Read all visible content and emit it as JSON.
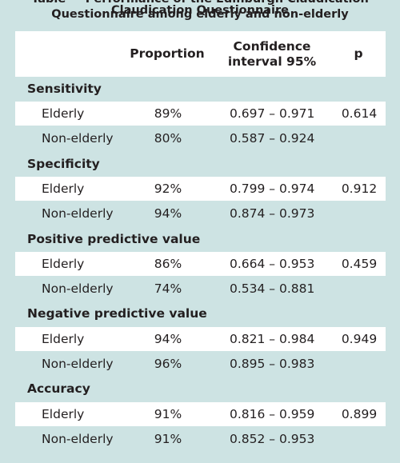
{
  "caption": {
    "line1": "Table — Performance of the Edinburgh Claudication Questionnaire among elderly and non-elderly",
    "line2": "Claudication Questionnaire"
  },
  "columns": {
    "proportion": "Proportion",
    "ci": "Confidence interval 95%",
    "p": "p"
  },
  "sections": [
    {
      "title": "Sensitivity",
      "rows": [
        {
          "label": "Elderly",
          "proportion": "89%",
          "ci": "0.697 – 0.971",
          "p": "0.614"
        },
        {
          "label": "Non-elderly",
          "proportion": "80%",
          "ci": "0.587 – 0.924",
          "p": ""
        }
      ]
    },
    {
      "title": "Specificity",
      "rows": [
        {
          "label": "Elderly",
          "proportion": "92%",
          "ci": "0.799 – 0.974",
          "p": "0.912"
        },
        {
          "label": "Non-elderly",
          "proportion": "94%",
          "ci": "0.874 – 0.973",
          "p": ""
        }
      ]
    },
    {
      "title": "Positive predictive value",
      "rows": [
        {
          "label": "Elderly",
          "proportion": "86%",
          "ci": "0.664 – 0.953",
          "p": "0.459"
        },
        {
          "label": "Non-elderly",
          "proportion": "74%",
          "ci": "0.534 – 0.881",
          "p": ""
        }
      ]
    },
    {
      "title": "Negative predictive value",
      "rows": [
        {
          "label": "Elderly",
          "proportion": "94%",
          "ci": "0.821 – 0.984",
          "p": "0.949"
        },
        {
          "label": "Non-elderly",
          "proportion": "96%",
          "ci": "0.895 – 0.983",
          "p": ""
        }
      ]
    },
    {
      "title": "Accuracy",
      "rows": [
        {
          "label": "Elderly",
          "proportion": "91%",
          "ci": "0.816 – 0.959",
          "p": "0.899"
        },
        {
          "label": "Non-elderly",
          "proportion": "91%",
          "ci": "0.852 – 0.953",
          "p": ""
        }
      ]
    }
  ]
}
